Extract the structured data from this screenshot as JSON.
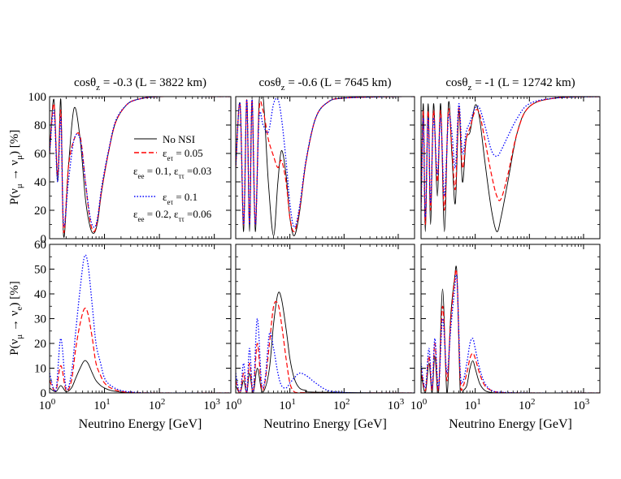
{
  "figure": {
    "xlabel": "Neutrino Energy [GeV]",
    "ylabel_top": "P(ν_μ → ν_μ) [%]",
    "ylabel_bottom": "P(ν_μ → ν_e) [%]",
    "titles": [
      {
        "main": "cosθ",
        "sub": "z",
        "rest": " = -0.3 (L = 3822 km)"
      },
      {
        "main": "cosθ",
        "sub": "z",
        "rest": " = -0.6 (L = 7645 km)"
      },
      {
        "main": "cosθ",
        "sub": "z",
        "rest": " = -1 (L = 12742 km)"
      }
    ],
    "x_ticks": [
      "10^0",
      "10^1",
      "10^2",
      "10^3"
    ],
    "y_ticks_top": [
      "0",
      "20",
      "40",
      "60",
      "80",
      "100"
    ],
    "y_ticks_bottom": [
      "0",
      "10",
      "20",
      "30",
      "40",
      "50",
      "60"
    ],
    "legend": [
      {
        "label": "No NSI",
        "color": "#000000",
        "style": "solid"
      },
      {
        "label": "ε_eτ = 0.05",
        "sub_label": "ε_ee = 0.1, ε_ττ =0.03",
        "color": "#ff0000",
        "style": "dashed"
      },
      {
        "label": "ε_eτ = 0.1",
        "sub_label": "ε_ee = 0.2, ε_ττ =0.06",
        "color": "#0000ff",
        "style": "dotted"
      }
    ]
  },
  "chart_data": [
    {
      "type": "line",
      "panel": "top-left",
      "x_scale": "log",
      "xlim": [
        1,
        2000
      ],
      "ylim": [
        0,
        100
      ],
      "series": [
        {
          "name": "No NSI",
          "x": [
            1,
            1.2,
            1.4,
            1.6,
            1.8,
            2.2,
            2.8,
            3.6,
            4.5,
            5.5,
            6.5,
            7.5,
            9,
            12,
            16,
            25,
            40,
            100,
            1000,
            2000
          ],
          "y": [
            60,
            98,
            40,
            98,
            2,
            50,
            92,
            70,
            28,
            8,
            4,
            12,
            35,
            62,
            82,
            94,
            98,
            100,
            100,
            100
          ]
        },
        {
          "name": "ε_eτ = 0.05",
          "x": [
            1,
            1.2,
            1.4,
            1.6,
            1.8,
            2.2,
            2.8,
            3.6,
            4.5,
            5.5,
            6.5,
            7.5,
            9,
            12,
            16,
            25,
            40,
            100,
            1000,
            2000
          ],
          "y": [
            60,
            95,
            45,
            90,
            5,
            50,
            70,
            72,
            40,
            12,
            5,
            14,
            36,
            62,
            82,
            94,
            98,
            100,
            100,
            100
          ]
        },
        {
          "name": "ε_eτ = 0.1",
          "x": [
            1,
            1.2,
            1.4,
            1.6,
            1.8,
            2.2,
            2.8,
            3.6,
            4.5,
            5.5,
            6.5,
            7.5,
            9,
            12,
            16,
            25,
            40,
            100,
            1000,
            2000
          ],
          "y": [
            60,
            90,
            40,
            85,
            10,
            40,
            70,
            70,
            40,
            15,
            8,
            15,
            38,
            63,
            83,
            94,
            98,
            100,
            100,
            100
          ]
        }
      ]
    },
    {
      "type": "line",
      "panel": "top-middle",
      "x_scale": "log",
      "xlim": [
        1,
        2000
      ],
      "ylim": [
        0,
        100
      ],
      "series": [
        {
          "name": "No NSI",
          "x": [
            1,
            1.2,
            1.4,
            1.6,
            1.8,
            2.0,
            2.3,
            2.7,
            3.2,
            4.0,
            5.0,
            6.0,
            7.0,
            8.5,
            10,
            12,
            15,
            20,
            30,
            50,
            100,
            1000,
            2000
          ],
          "y": [
            50,
            95,
            5,
            98,
            5,
            98,
            5,
            95,
            100,
            40,
            2,
            40,
            62,
            45,
            15,
            2,
            18,
            55,
            85,
            96,
            99,
            100,
            100
          ]
        },
        {
          "name": "ε_eτ = 0.05",
          "x": [
            1,
            1.2,
            1.4,
            1.6,
            1.8,
            2.0,
            2.3,
            2.7,
            3.2,
            4.0,
            5.0,
            6.0,
            7.0,
            8.5,
            10,
            12,
            15,
            20,
            30,
            50,
            100,
            1000,
            2000
          ],
          "y": [
            50,
            95,
            10,
            98,
            10,
            98,
            10,
            90,
            90,
            70,
            58,
            50,
            55,
            40,
            15,
            5,
            20,
            55,
            85,
            96,
            99,
            100,
            100
          ]
        },
        {
          "name": "ε_eτ = 0.1",
          "x": [
            1,
            1.2,
            1.4,
            1.6,
            1.8,
            2.0,
            2.3,
            2.7,
            3.2,
            4.0,
            5.0,
            6.0,
            7.0,
            8.5,
            10,
            12,
            15,
            20,
            30,
            50,
            100,
            1000,
            2000
          ],
          "y": [
            50,
            95,
            10,
            98,
            10,
            98,
            10,
            85,
            80,
            75,
            95,
            98,
            85,
            55,
            25,
            8,
            22,
            56,
            85,
            96,
            99,
            100,
            100
          ]
        }
      ]
    },
    {
      "type": "line",
      "panel": "top-right",
      "x_scale": "log",
      "xlim": [
        1,
        2000
      ],
      "ylim": [
        0,
        100
      ],
      "series": [
        {
          "name": "No NSI",
          "x": [
            1,
            1.1,
            1.2,
            1.35,
            1.5,
            1.7,
            2.0,
            2.3,
            2.7,
            3.2,
            3.7,
            4.3,
            5.0,
            5.8,
            6.8,
            8.0,
            10,
            12,
            15,
            20,
            25,
            30,
            40,
            60,
            100,
            300,
            2000
          ],
          "y": [
            20,
            95,
            5,
            95,
            10,
            95,
            30,
            95,
            5,
            95,
            60,
            25,
            90,
            40,
            70,
            75,
            94,
            85,
            55,
            20,
            5,
            15,
            40,
            75,
            93,
            99,
            100
          ]
        },
        {
          "name": "ε_eτ = 0.05",
          "x": [
            1,
            1.1,
            1.2,
            1.35,
            1.5,
            1.7,
            2.0,
            2.3,
            2.7,
            3.2,
            3.7,
            4.3,
            5.0,
            5.8,
            6.8,
            8.0,
            10,
            12,
            15,
            20,
            25,
            30,
            40,
            60,
            100,
            300,
            2000
          ],
          "y": [
            20,
            90,
            10,
            90,
            20,
            90,
            40,
            90,
            20,
            90,
            65,
            35,
            92,
            50,
            70,
            78,
            90,
            88,
            70,
            45,
            30,
            28,
            45,
            75,
            93,
            99,
            100
          ]
        },
        {
          "name": "ε_eτ = 0.1",
          "x": [
            1,
            1.1,
            1.2,
            1.35,
            1.5,
            1.7,
            2.0,
            2.3,
            2.7,
            3.2,
            3.7,
            4.3,
            5.0,
            5.8,
            6.8,
            8.0,
            10,
            12,
            15,
            20,
            25,
            30,
            40,
            60,
            100,
            300,
            2000
          ],
          "y": [
            20,
            85,
            15,
            85,
            25,
            85,
            45,
            85,
            30,
            85,
            75,
            50,
            95,
            60,
            75,
            82,
            92,
            92,
            80,
            62,
            58,
            62,
            72,
            85,
            95,
            99,
            100
          ]
        }
      ]
    },
    {
      "type": "line",
      "panel": "bottom-left",
      "x_scale": "log",
      "xlim": [
        1,
        2000
      ],
      "ylim": [
        0,
        60
      ],
      "series": [
        {
          "name": "No NSI",
          "x": [
            1,
            1.3,
            1.6,
            2.0,
            2.5,
            3.0,
            3.6,
            4.3,
            5.0,
            6.0,
            7.0,
            8.5,
            10,
            13,
            20,
            40,
            100,
            2000
          ],
          "y": [
            2,
            0.5,
            3,
            0.5,
            2,
            6,
            10,
            13,
            12,
            8,
            5,
            3,
            2,
            1,
            0.3,
            0,
            0,
            0
          ]
        },
        {
          "name": "ε_eτ = 0.05",
          "x": [
            1,
            1.3,
            1.6,
            2.0,
            2.5,
            3.0,
            3.6,
            4.3,
            5.0,
            6.0,
            7.0,
            8.5,
            10,
            13,
            20,
            40,
            100,
            2000
          ],
          "y": [
            5,
            1,
            11,
            1,
            5,
            18,
            28,
            34,
            32,
            22,
            12,
            7,
            4,
            2,
            0.6,
            0.1,
            0,
            0
          ]
        },
        {
          "name": "ε_eτ = 0.1",
          "x": [
            1,
            1.3,
            1.6,
            2.0,
            2.5,
            3.0,
            3.6,
            4.3,
            5.0,
            6.0,
            7.0,
            8.5,
            10,
            13,
            20,
            40,
            100,
            2000
          ],
          "y": [
            8,
            1,
            22,
            2,
            8,
            25,
            42,
            55,
            52,
            35,
            20,
            12,
            6,
            3,
            1,
            0.2,
            0,
            0
          ]
        }
      ]
    },
    {
      "type": "line",
      "panel": "bottom-middle",
      "x_scale": "log",
      "xlim": [
        1,
        2000
      ],
      "ylim": [
        0,
        60
      ],
      "series": [
        {
          "name": "No NSI",
          "x": [
            1,
            1.2,
            1.4,
            1.6,
            1.8,
            2.1,
            2.5,
            3.0,
            3.5,
            4.2,
            5.0,
            6.0,
            7.0,
            8.5,
            10,
            12,
            15,
            20,
            30,
            2000
          ],
          "y": [
            3,
            0,
            5,
            0,
            8,
            0,
            10,
            1,
            2,
            10,
            28,
            40,
            38,
            26,
            14,
            6,
            2,
            1,
            0.3,
            0
          ]
        },
        {
          "name": "ε_eτ = 0.05",
          "x": [
            1,
            1.2,
            1.4,
            1.6,
            1.8,
            2.1,
            2.5,
            3.0,
            3.5,
            4.2,
            5.0,
            6.0,
            7.0,
            8.5,
            10,
            12,
            15,
            20,
            30,
            2000
          ],
          "y": [
            5,
            0,
            8,
            0,
            12,
            0,
            20,
            2,
            5,
            20,
            35,
            36,
            28,
            14,
            4,
            0.5,
            0.2,
            0.1,
            0,
            0
          ]
        },
        {
          "name": "ε_eτ = 0.1",
          "x": [
            1,
            1.2,
            1.4,
            1.6,
            1.8,
            2.1,
            2.5,
            3.0,
            3.5,
            4.2,
            5.0,
            6.0,
            7.0,
            8.5,
            10,
            12,
            15,
            20,
            30,
            50,
            100,
            200,
            2000
          ],
          "y": [
            8,
            0,
            12,
            0,
            18,
            0,
            30,
            4,
            6,
            24,
            18,
            8,
            3,
            2,
            4,
            6,
            8,
            7,
            4,
            1,
            0.2,
            0,
            0
          ]
        }
      ]
    },
    {
      "type": "line",
      "panel": "bottom-right",
      "x_scale": "log",
      "xlim": [
        1,
        2000
      ],
      "ylim": [
        0,
        60
      ],
      "series": [
        {
          "name": "No NSI",
          "x": [
            1,
            1.2,
            1.4,
            1.6,
            1.8,
            2.1,
            2.5,
            3.0,
            3.5,
            4.1,
            4.6,
            5.3,
            6.0,
            7.0,
            8.0,
            9.0,
            10,
            12,
            15,
            20,
            30,
            100,
            2000
          ],
          "y": [
            8,
            0,
            12,
            0,
            15,
            0,
            42,
            0,
            30,
            45,
            48,
            0,
            1,
            3,
            10,
            13,
            10,
            4,
            1,
            0.2,
            0,
            0,
            0
          ]
        },
        {
          "name": "ε_eτ = 0.05",
          "x": [
            1,
            1.2,
            1.4,
            1.6,
            1.8,
            2.1,
            2.5,
            3.0,
            3.5,
            4.1,
            4.6,
            5.3,
            6.0,
            7.0,
            8.0,
            9.0,
            10,
            12,
            15,
            20,
            30,
            100,
            2000
          ],
          "y": [
            10,
            1,
            15,
            1,
            20,
            1,
            35,
            5,
            28,
            44,
            47,
            5,
            3,
            8,
            14,
            16,
            14,
            8,
            3,
            1,
            0.2,
            0,
            0
          ]
        },
        {
          "name": "ε_eτ = 0.1",
          "x": [
            1,
            1.2,
            1.4,
            1.6,
            1.8,
            2.1,
            2.5,
            3.0,
            3.5,
            4.1,
            4.6,
            5.3,
            6.0,
            7.0,
            8.0,
            9.0,
            10,
            12,
            15,
            20,
            30,
            100,
            2000
          ],
          "y": [
            12,
            2,
            18,
            2,
            22,
            2,
            30,
            8,
            25,
            40,
            46,
            8,
            5,
            12,
            20,
            22,
            18,
            10,
            4,
            1,
            0.3,
            0,
            0
          ]
        }
      ]
    }
  ]
}
